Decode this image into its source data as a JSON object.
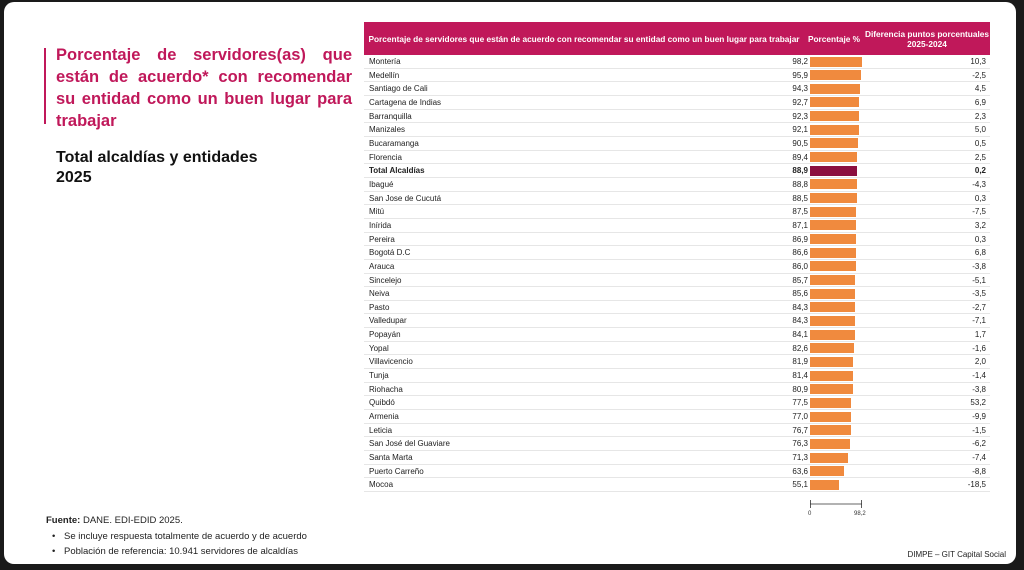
{
  "title": "Porcentaje de servidores(as) que están de acuerdo* con recomendar su entidad como un buen lugar para trabajar",
  "subtitle_line1": "Total alcaldías y entidades",
  "subtitle_line2": "2025",
  "header": {
    "col1": "Porcentaje de servidores que están de acuerdo con recomendar su entidad como un buen lugar para trabajar",
    "col2": "Porcentaje %",
    "col3": "Diferencia puntos porcentuales 2025-2024"
  },
  "colors": {
    "accent": "#c0185a",
    "bar": "#f08a3e",
    "bar_total": "#8b0f3f"
  },
  "chart_data": {
    "type": "bar",
    "orientation": "horizontal",
    "xlim": [
      0,
      98.2
    ],
    "axis_ticks": [
      "0",
      "98,2"
    ],
    "rows": [
      {
        "name": "Montería",
        "value": 98.2,
        "value_label": "98,2",
        "diff": "10,3"
      },
      {
        "name": "Medellín",
        "value": 95.9,
        "value_label": "95,9",
        "diff": "-2,5"
      },
      {
        "name": "Santiago de Cali",
        "value": 94.3,
        "value_label": "94,3",
        "diff": "4,5"
      },
      {
        "name": "Cartagena de Indias",
        "value": 92.7,
        "value_label": "92,7",
        "diff": "6,9"
      },
      {
        "name": "Barranquilla",
        "value": 92.3,
        "value_label": "92,3",
        "diff": "2,3"
      },
      {
        "name": "Manizales",
        "value": 92.1,
        "value_label": "92,1",
        "diff": "5,0"
      },
      {
        "name": "Bucaramanga",
        "value": 90.5,
        "value_label": "90,5",
        "diff": "0,5"
      },
      {
        "name": "Florencia",
        "value": 89.4,
        "value_label": "89,4",
        "diff": "2,5"
      },
      {
        "name": "Total Alcaldías",
        "value": 88.9,
        "value_label": "88,9",
        "diff": "0,2",
        "bold": true
      },
      {
        "name": "Ibagué",
        "value": 88.8,
        "value_label": "88,8",
        "diff": "-4,3"
      },
      {
        "name": "San Jose de Cucutá",
        "value": 88.5,
        "value_label": "88,5",
        "diff": "0,3"
      },
      {
        "name": "Mitú",
        "value": 87.5,
        "value_label": "87,5",
        "diff": "-7,5"
      },
      {
        "name": "Inírida",
        "value": 87.1,
        "value_label": "87,1",
        "diff": "3,2"
      },
      {
        "name": "Pereira",
        "value": 86.9,
        "value_label": "86,9",
        "diff": "0,3"
      },
      {
        "name": "Bogotá D.C",
        "value": 86.6,
        "value_label": "86,6",
        "diff": "6,8"
      },
      {
        "name": "Arauca",
        "value": 86.0,
        "value_label": "86,0",
        "diff": "-3,8"
      },
      {
        "name": "Sincelejo",
        "value": 85.7,
        "value_label": "85,7",
        "diff": "-5,1"
      },
      {
        "name": "Neiva",
        "value": 85.6,
        "value_label": "85,6",
        "diff": "-3,5"
      },
      {
        "name": "Pasto",
        "value": 84.3,
        "value_label": "84,3",
        "diff": "-2,7"
      },
      {
        "name": "Valledupar",
        "value": 84.3,
        "value_label": "84,3",
        "diff": "-7,1"
      },
      {
        "name": "Popayán",
        "value": 84.1,
        "value_label": "84,1",
        "diff": "1,7"
      },
      {
        "name": "Yopal",
        "value": 82.6,
        "value_label": "82,6",
        "diff": "-1,6"
      },
      {
        "name": "Villavicencio",
        "value": 81.9,
        "value_label": "81,9",
        "diff": "2,0"
      },
      {
        "name": "Tunja",
        "value": 81.4,
        "value_label": "81,4",
        "diff": "-1,4"
      },
      {
        "name": "Riohacha",
        "value": 80.9,
        "value_label": "80,9",
        "diff": "-3,8"
      },
      {
        "name": "Quibdó",
        "value": 77.5,
        "value_label": "77,5",
        "diff": "53,2"
      },
      {
        "name": "Armenia",
        "value": 77.0,
        "value_label": "77,0",
        "diff": "-9,9"
      },
      {
        "name": "Leticia",
        "value": 76.7,
        "value_label": "76,7",
        "diff": "-1,5"
      },
      {
        "name": "San José del Guaviare",
        "value": 76.3,
        "value_label": "76,3",
        "diff": "-6,2"
      },
      {
        "name": "Santa Marta",
        "value": 71.3,
        "value_label": "71,3",
        "diff": "-7,4"
      },
      {
        "name": "Puerto Carreño",
        "value": 63.6,
        "value_label": "63,6",
        "diff": "-8,8"
      },
      {
        "name": "Mocoa",
        "value": 55.1,
        "value_label": "55,1",
        "diff": "-18,5"
      }
    ]
  },
  "footer": {
    "source_label": "Fuente:",
    "source_text": "DANE. EDI-EDID 2025.",
    "note1": "Se incluye respuesta totalmente de acuerdo y de acuerdo",
    "note2": "Población de referencia: 10.941 servidores de alcaldías"
  },
  "credit": "DIMPE – GIT Capital Social"
}
